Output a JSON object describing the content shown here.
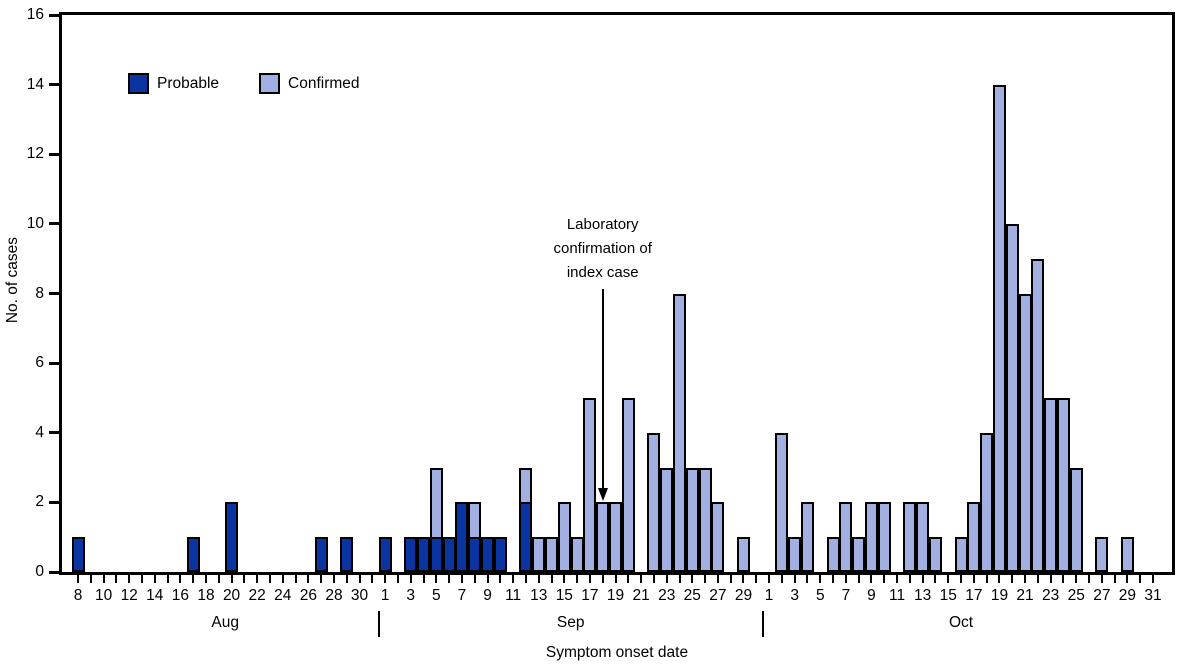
{
  "chart_data": {
    "type": "bar",
    "stacked": true,
    "title": "",
    "xlabel": "Symptom onset date",
    "ylabel": "No. of cases",
    "ylim": [
      0,
      16
    ],
    "grid": false,
    "legend_position": "top-left",
    "y_axis": {
      "ticks": [
        0,
        2,
        4,
        6,
        8,
        10,
        12,
        14,
        16
      ]
    },
    "x_axis": {
      "months": [
        {
          "label": "Aug",
          "first_day": 8,
          "last_day": 31,
          "labeled_days": [
            8,
            10,
            12,
            14,
            16,
            18,
            20,
            22,
            24,
            26,
            28,
            30
          ]
        },
        {
          "label": "Sep",
          "first_day": 1,
          "last_day": 30,
          "labeled_days": [
            1,
            3,
            5,
            7,
            9,
            11,
            13,
            15,
            17,
            19,
            21,
            23,
            25,
            27,
            29
          ]
        },
        {
          "label": "Oct",
          "first_day": 1,
          "last_day": 31,
          "labeled_days": [
            1,
            3,
            5,
            7,
            9,
            11,
            13,
            15,
            17,
            19,
            21,
            23,
            25,
            27,
            29,
            31
          ]
        }
      ]
    },
    "series": [
      {
        "name": "Probable",
        "color": "#0b34a3",
        "points": {
          "Aug 8": 1,
          "Aug 17": 1,
          "Aug 20": 2,
          "Aug 27": 1,
          "Aug 29": 1,
          "Sep 1": 1,
          "Sep 3": 1,
          "Sep 4": 1,
          "Sep 5": 1,
          "Sep 6": 1,
          "Sep 7": 2,
          "Sep 8": 1,
          "Sep 9": 1,
          "Sep 10": 1,
          "Sep 12": 2
        }
      },
      {
        "name": "Confirmed",
        "color": "#a1b0e0",
        "points": {
          "Sep 5": 2,
          "Sep 8": 1,
          "Sep 12": 1,
          "Sep 13": 1,
          "Sep 14": 1,
          "Sep 15": 2,
          "Sep 16": 1,
          "Sep 17": 5,
          "Sep 18": 2,
          "Sep 19": 2,
          "Sep 20": 5,
          "Sep 22": 4,
          "Sep 23": 3,
          "Sep 24": 8,
          "Sep 25": 3,
          "Sep 26": 3,
          "Sep 27": 2,
          "Sep 29": 1,
          "Oct 2": 4,
          "Oct 3": 1,
          "Oct 4": 2,
          "Oct 6": 1,
          "Oct 7": 2,
          "Oct 8": 1,
          "Oct 9": 2,
          "Oct 10": 2,
          "Oct 12": 2,
          "Oct 13": 2,
          "Oct 14": 1,
          "Oct 16": 1,
          "Oct 17": 2,
          "Oct 18": 4,
          "Oct 19": 14,
          "Oct 20": 10,
          "Oct 21": 8,
          "Oct 22": 9,
          "Oct 23": 5,
          "Oct 24": 5,
          "Oct 25": 3,
          "Oct 27": 1,
          "Oct 29": 1
        }
      }
    ],
    "annotation": {
      "lines": [
        "Laboratory",
        "confirmation of",
        "index case"
      ],
      "points_to": "Sep 18"
    }
  }
}
